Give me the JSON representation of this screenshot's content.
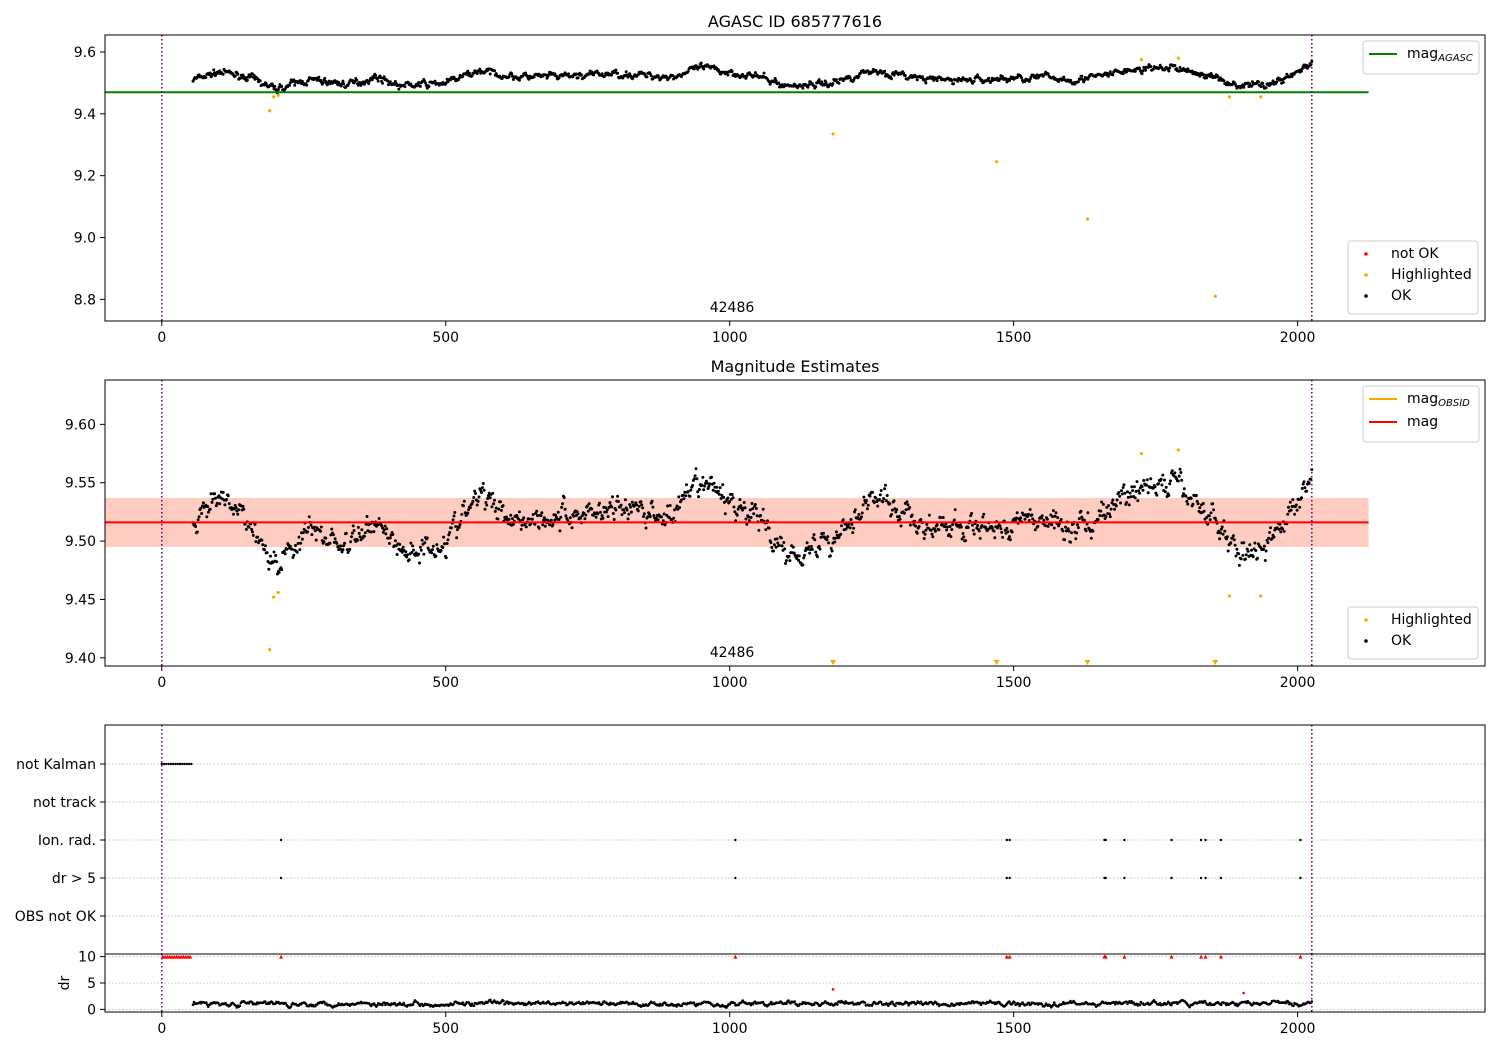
{
  "chart_data": [
    {
      "type": "scatter",
      "title": "AGASC ID 685777616",
      "xlim": [
        -100,
        2330
      ],
      "ylim": [
        8.73,
        9.655
      ],
      "xticks": [
        "0",
        "500",
        "1000",
        "1500",
        "2000"
      ],
      "yticks": [
        "8.8",
        "9.0",
        "9.2",
        "9.4",
        "9.6"
      ],
      "annotation": "42486",
      "grid": false,
      "vlines_x": [
        0,
        2025
      ],
      "hline": {
        "name": "mag_AGASC",
        "label_base": "mag",
        "label_sub": "AGASC",
        "y": 9.47,
        "x_range": [
          -100,
          2125
        ],
        "color": "#008000"
      },
      "legend_lines_position": "top-right",
      "legend_points_position": "bottom-right",
      "legend_points": [
        {
          "label": "not OK",
          "color": "#ff0000"
        },
        {
          "label": "Highlighted",
          "color": "#ffa500"
        },
        {
          "label": "OK",
          "color": "#000000"
        }
      ],
      "series": [
        {
          "name": "OK",
          "color": "#000000",
          "x_range": [
            55,
            2025
          ],
          "count": 1300,
          "baseline": [
            [
              55,
              9.51
            ],
            [
              100,
              9.535
            ],
            [
              150,
              9.52
            ],
            [
              200,
              9.48
            ],
            [
              260,
              9.51
            ],
            [
              330,
              9.495
            ],
            [
              380,
              9.52
            ],
            [
              420,
              9.49
            ],
            [
              500,
              9.5
            ],
            [
              560,
              9.54
            ],
            [
              620,
              9.52
            ],
            [
              700,
              9.52
            ],
            [
              800,
              9.53
            ],
            [
              900,
              9.52
            ],
            [
              950,
              9.55
            ],
            [
              1050,
              9.52
            ],
            [
              1100,
              9.49
            ],
            [
              1180,
              9.5
            ],
            [
              1250,
              9.54
            ],
            [
              1350,
              9.51
            ],
            [
              1450,
              9.51
            ],
            [
              1550,
              9.52
            ],
            [
              1600,
              9.51
            ],
            [
              1650,
              9.52
            ],
            [
              1700,
              9.54
            ],
            [
              1780,
              9.55
            ],
            [
              1850,
              9.52
            ],
            [
              1900,
              9.49
            ],
            [
              1960,
              9.5
            ],
            [
              2025,
              9.56
            ]
          ],
          "spread": 0.012
        },
        {
          "name": "Highlighted",
          "color": "#ffa500",
          "points": [
            [
              190,
              9.41
            ],
            [
              197,
              9.455
            ],
            [
              205,
              9.46
            ],
            [
              1182,
              9.335
            ],
            [
              1470,
              9.245
            ],
            [
              1630,
              9.06
            ],
            [
              1725,
              9.575
            ],
            [
              1790,
              9.58
            ],
            [
              1855,
              8.81
            ],
            [
              1880,
              9.455
            ],
            [
              1935,
              9.455
            ]
          ]
        }
      ]
    },
    {
      "type": "scatter",
      "title": "Magnitude Estimates",
      "xlim": [
        -100,
        2330
      ],
      "ylim": [
        9.393,
        9.638
      ],
      "xticks": [
        "0",
        "500",
        "1000",
        "1500",
        "2000"
      ],
      "yticks": [
        "9.40",
        "9.45",
        "9.50",
        "9.55",
        "9.60"
      ],
      "annotation": "42486",
      "grid": false,
      "vlines_x": [
        0,
        2025
      ],
      "mag": {
        "y": 9.516,
        "band_outer": [
          9.495,
          9.537
        ],
        "band_inner": [
          9.495,
          9.537
        ],
        "x_range": [
          -100,
          2125
        ],
        "color": "#ff0000"
      },
      "legend_lines_position": "top-right",
      "legend_points_position": "bottom-right",
      "legend_lines": [
        {
          "label_base": "mag",
          "label_sub": "OBSID",
          "color": "#ffa500"
        },
        {
          "label_base": "mag",
          "label_sub": "",
          "color": "#ff0000"
        }
      ],
      "legend_points": [
        {
          "label": "Highlighted",
          "color": "#ffa500"
        },
        {
          "label": "OK",
          "color": "#000000"
        }
      ],
      "series": [
        {
          "name": "OK",
          "color": "#000000",
          "x_range": [
            55,
            2025
          ],
          "count": 1300,
          "baseline": [
            [
              55,
              9.51
            ],
            [
              100,
              9.535
            ],
            [
              150,
              9.52
            ],
            [
              200,
              9.48
            ],
            [
              260,
              9.51
            ],
            [
              330,
              9.495
            ],
            [
              380,
              9.52
            ],
            [
              420,
              9.49
            ],
            [
              500,
              9.5
            ],
            [
              560,
              9.54
            ],
            [
              620,
              9.52
            ],
            [
              700,
              9.52
            ],
            [
              800,
              9.53
            ],
            [
              900,
              9.52
            ],
            [
              950,
              9.55
            ],
            [
              1050,
              9.52
            ],
            [
              1100,
              9.49
            ],
            [
              1180,
              9.5
            ],
            [
              1250,
              9.54
            ],
            [
              1350,
              9.51
            ],
            [
              1450,
              9.51
            ],
            [
              1550,
              9.52
            ],
            [
              1600,
              9.51
            ],
            [
              1650,
              9.52
            ],
            [
              1700,
              9.54
            ],
            [
              1780,
              9.55
            ],
            [
              1850,
              9.52
            ],
            [
              1900,
              9.49
            ],
            [
              1960,
              9.5
            ],
            [
              2025,
              9.56
            ]
          ],
          "spread": 0.012
        },
        {
          "name": "Highlighted",
          "color": "#ffa500",
          "points": [
            [
              190,
              9.407
            ],
            [
              197,
              9.452
            ],
            [
              205,
              9.456
            ],
            [
              1725,
              9.575
            ],
            [
              1790,
              9.578
            ],
            [
              1880,
              9.453
            ],
            [
              1935,
              9.453
            ]
          ]
        },
        {
          "name": "mag_OBSID",
          "color": "#ffa500",
          "lower_bound_markers_x": [
            1182,
            1470,
            1630,
            1855
          ]
        }
      ]
    },
    {
      "type": "scatter",
      "title": "",
      "xlim": [
        -100,
        2330
      ],
      "xticks": [
        "0",
        "500",
        "1000",
        "1500",
        "2000"
      ],
      "grid": true,
      "vlines_x": [
        0,
        2025
      ],
      "flag_labels": [
        "not Kalman",
        "not track",
        "Ion. rad.",
        "dr > 5",
        "OBS not OK"
      ],
      "flags": [
        {
          "label": "not Kalman",
          "x_range": [
            0,
            52
          ],
          "count": 14
        },
        {
          "label": "not track",
          "points_x": []
        },
        {
          "label": "Ion. rad.",
          "points_x": [
            210,
            1010,
            1488,
            1493,
            1660,
            1662,
            1695,
            1778,
            1830,
            1838,
            1865,
            2005
          ]
        },
        {
          "label": "dr > 5",
          "points_x": [
            210,
            1010,
            1488,
            1493,
            1660,
            1662,
            1695,
            1778,
            1830,
            1838,
            1865,
            2005
          ]
        },
        {
          "label": "OBS not OK",
          "points_x": []
        }
      ]
    },
    {
      "type": "scatter",
      "title": "",
      "ylabel": "dr",
      "xlim": [
        -100,
        2330
      ],
      "ylim": [
        -0.5,
        10.5
      ],
      "xticks": [
        "0",
        "500",
        "1000",
        "1500",
        "2000"
      ],
      "yticks": [
        "0",
        "5",
        "10"
      ],
      "grid": true,
      "vlines_x": [
        0,
        2025
      ],
      "series": [
        {
          "name": "dr",
          "color": "#000000",
          "x_range": [
            55,
            2025
          ],
          "count": 1100,
          "mean": 1.1,
          "spread": 0.6
        },
        {
          "name": "dr clipped",
          "color": "#ff0000",
          "marker": "triangle-up",
          "y": 10,
          "points_x": [
            2,
            6,
            10,
            14,
            18,
            22,
            26,
            30,
            34,
            38,
            42,
            46,
            50,
            210,
            1010,
            1488,
            1493,
            1660,
            1662,
            1695,
            1778,
            1830,
            1838,
            1865,
            2005
          ]
        },
        {
          "name": "dr outliers",
          "color": "#ff0000",
          "points": [
            [
              1182,
              3.8
            ],
            [
              1905,
              3.1
            ]
          ]
        }
      ]
    }
  ]
}
